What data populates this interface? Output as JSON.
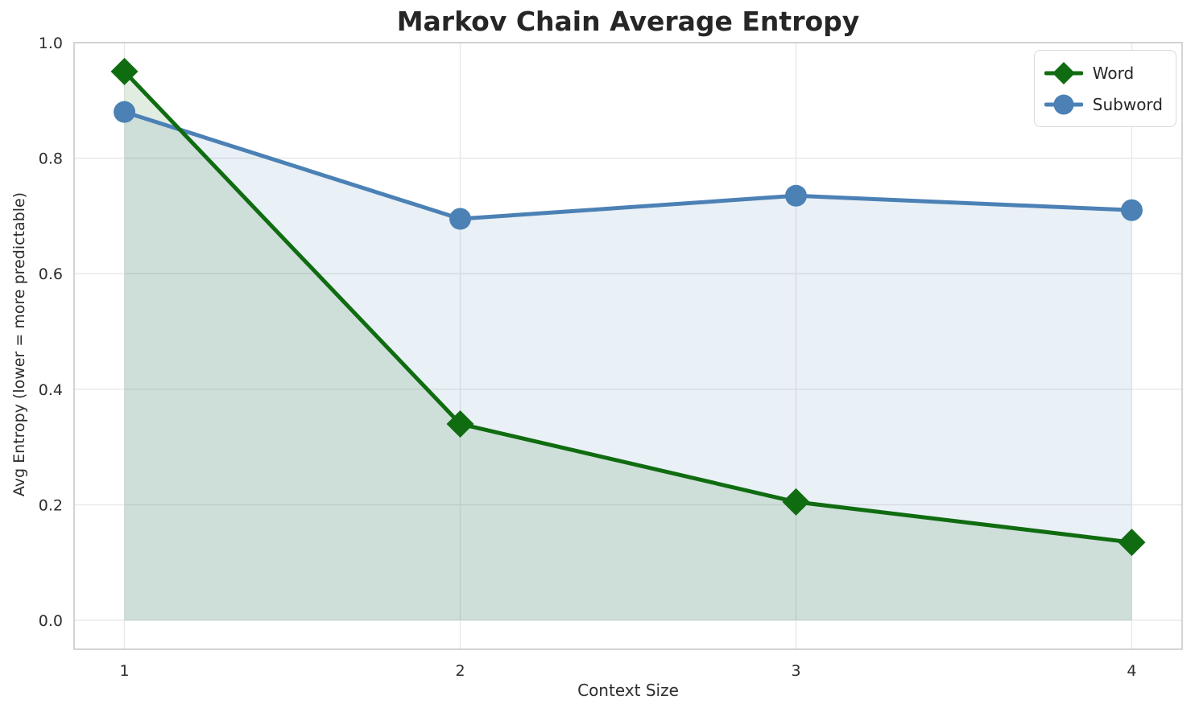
{
  "chart_data": {
    "type": "line",
    "title": "Markov Chain Average Entropy",
    "xlabel": "Context Size",
    "ylabel": "Avg Entropy (lower = more predictable)",
    "x": [
      1,
      2,
      3,
      4
    ],
    "series": [
      {
        "name": "Word",
        "values": [
          0.95,
          0.34,
          0.205,
          0.135
        ],
        "color": "#106c10",
        "marker": "diamond"
      },
      {
        "name": "Subword",
        "values": [
          0.88,
          0.695,
          0.735,
          0.71
        ],
        "color": "#4b81b5",
        "marker": "circle"
      }
    ],
    "xticks": [
      1,
      2,
      3,
      4
    ],
    "yticks": [
      0.0,
      0.2,
      0.4,
      0.6,
      0.8,
      1.0
    ],
    "xlim": [
      0.85,
      4.15
    ],
    "ylim": [
      -0.05,
      1.0
    ],
    "grid": true,
    "grid_color": "#e8e8e8",
    "spine_color": "#c9c9c9",
    "tick_label_color": "#2e2e2e",
    "area_baseline": 0,
    "fill_opacity": 0.12,
    "line_width": 5,
    "legend_position": "upper right"
  }
}
